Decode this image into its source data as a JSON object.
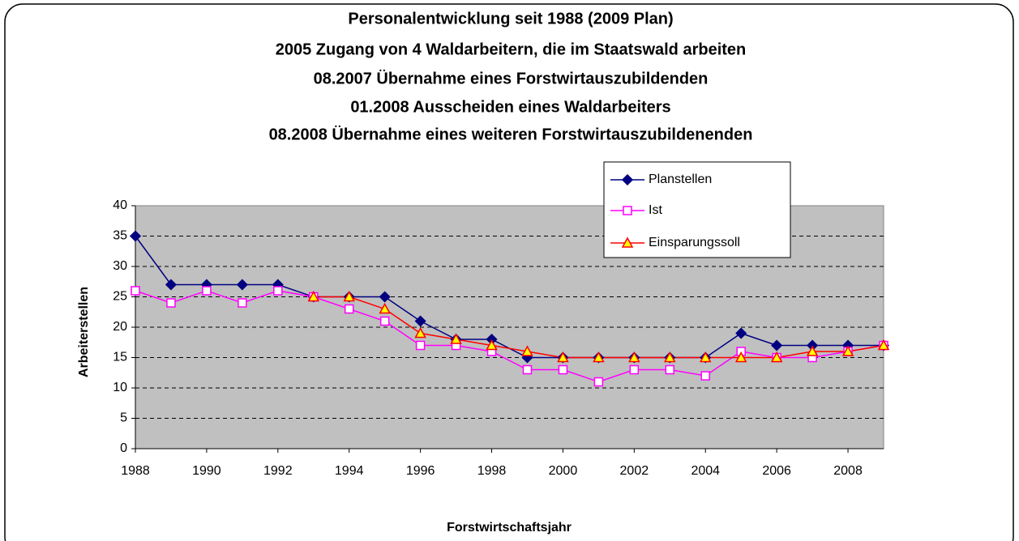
{
  "chart_data": {
    "type": "line",
    "title": [
      "Personalentwicklung seit 1988 (2009 Plan)",
      "2005 Zugang von 4 Waldarbeitern, die im Staatswald arbeiten",
      "08.2007 Übernahme eines Forstwirtauszubildenden",
      "01.2008 Ausscheiden eines Waldarbeiters",
      "08.2008 Übernahme eines weiteren Forstwirtauszubildenenden"
    ],
    "x_label": "Forstwirtschaftsjahr",
    "y_label": "Arbeiterstellen",
    "x": [
      1988,
      1989,
      1990,
      1991,
      1992,
      1993,
      1994,
      1995,
      1996,
      1997,
      1998,
      1999,
      2000,
      2001,
      2002,
      2003,
      2004,
      2005,
      2006,
      2007,
      2008,
      2009
    ],
    "xlim": [
      1988,
      2009
    ],
    "xticks": [
      1988,
      1990,
      1992,
      1994,
      1996,
      1998,
      2000,
      2002,
      2004,
      2006,
      2008
    ],
    "ylim": [
      0,
      40
    ],
    "yticks": [
      0,
      5,
      10,
      15,
      20,
      25,
      30,
      35,
      40
    ],
    "grid": true,
    "legend": "top-right",
    "series": [
      {
        "name": "Planstellen",
        "color": "#000080",
        "marker": "diamond",
        "marker_fill": "#000080",
        "values": [
          35,
          27,
          27,
          27,
          27,
          25,
          25,
          25,
          21,
          18,
          18,
          15,
          15,
          15,
          15,
          15,
          15,
          19,
          17,
          17,
          17,
          17
        ]
      },
      {
        "name": "Ist",
        "color": "#ff00ff",
        "marker": "square",
        "marker_fill": "#ffffff",
        "values": [
          26,
          24,
          26,
          24,
          26,
          25,
          23,
          21,
          17,
          17,
          16,
          13,
          13,
          11,
          13,
          13,
          12,
          16,
          15,
          15,
          16,
          17
        ]
      },
      {
        "name": "Einsparungssoll",
        "color": "#ff0000",
        "marker": "triangle",
        "marker_fill": "#ffff00",
        "values": [
          null,
          null,
          null,
          null,
          null,
          25,
          25,
          23,
          19,
          18,
          17,
          16,
          15,
          15,
          15,
          15,
          15,
          15,
          15,
          16,
          16,
          17
        ]
      }
    ]
  }
}
